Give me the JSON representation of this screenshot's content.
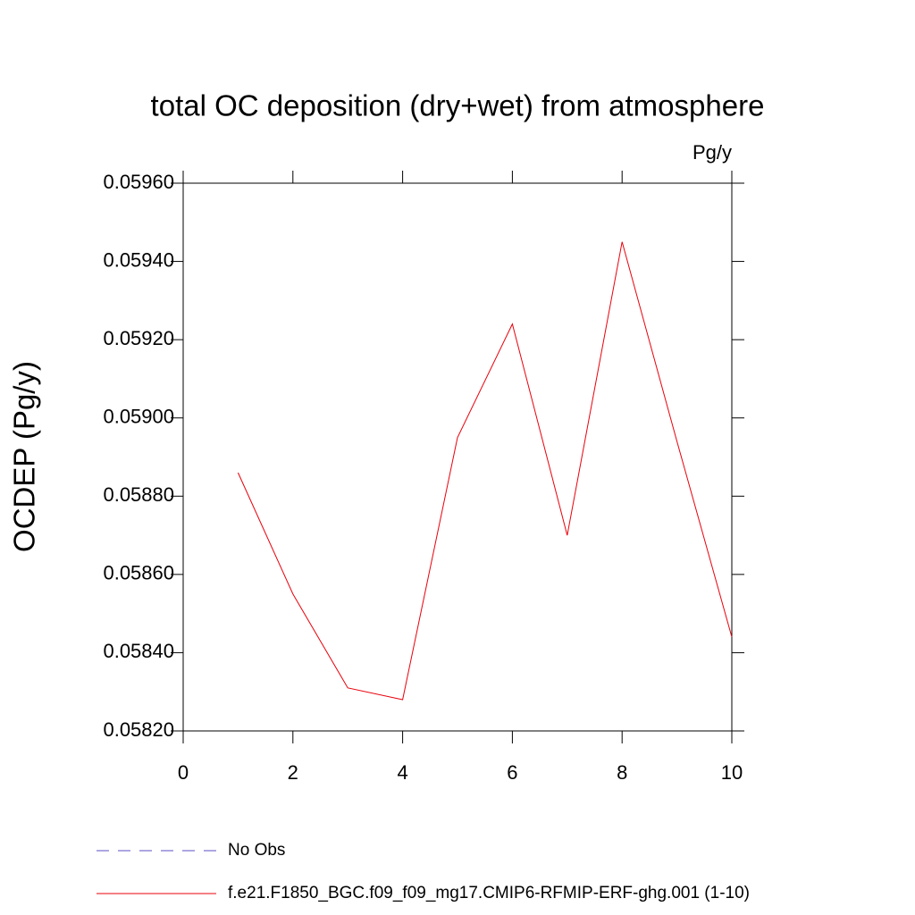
{
  "chart_data": {
    "type": "line",
    "title": "total OC deposition (dry+wet) from atmosphere",
    "units": "Pg/y",
    "y_label": "OCDEP  (Pg/y)",
    "x": [
      1,
      2,
      3,
      4,
      5,
      6,
      7,
      8,
      9,
      10
    ],
    "series": [
      {
        "name": "No Obs",
        "color": "#5a4fc4",
        "dashed": true,
        "values": [
          null,
          null,
          null,
          null,
          null,
          null,
          null,
          null,
          null,
          null
        ]
      },
      {
        "name": "f.e21.F1850_BGC.f09_f09_mg17.CMIP6-RFMIP-ERF-ghg.001 (1-10)",
        "color": "#e8000b",
        "dashed": false,
        "values": [
          0.05886,
          0.05855,
          0.05831,
          0.05828,
          0.05895,
          0.05924,
          0.0587,
          0.05945,
          0.05894,
          0.05844
        ]
      }
    ],
    "xlim": [
      0,
      10
    ],
    "xticks": [
      0,
      2,
      4,
      6,
      8,
      10
    ],
    "ylim": [
      0.0582,
      0.0596
    ],
    "yticks": [
      {
        "value": 0.0582,
        "label": "0.05820"
      },
      {
        "value": 0.0584,
        "label": "0.05840"
      },
      {
        "value": 0.0586,
        "label": "0.05860"
      },
      {
        "value": 0.0588,
        "label": "0.05880"
      },
      {
        "value": 0.059,
        "label": "0.05900"
      },
      {
        "value": 0.0592,
        "label": "0.05920"
      },
      {
        "value": 0.0594,
        "label": "0.05940"
      },
      {
        "value": 0.0596,
        "label": "0.05960"
      }
    ]
  }
}
